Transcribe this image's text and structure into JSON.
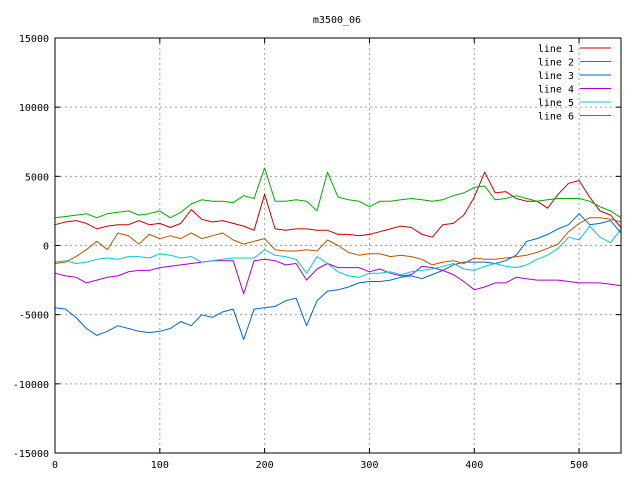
{
  "chart_data": {
    "type": "line",
    "title": "m3500_06",
    "xlabel": "",
    "ylabel": "",
    "xlim": [
      0,
      540
    ],
    "ylim": [
      -15000,
      15000
    ],
    "xticks": [
      0,
      100,
      200,
      300,
      400,
      500
    ],
    "yticks": [
      -15000,
      -10000,
      -5000,
      0,
      5000,
      10000,
      15000
    ],
    "xtick_labels": [
      "0",
      "100",
      "200",
      "300",
      "400",
      "500"
    ],
    "ytick_labels": [
      "-15000",
      "-10000",
      "-5000",
      "0",
      "5000",
      "10000",
      "15000"
    ],
    "grid": true,
    "legend_position": "top-right",
    "x": [
      0,
      10,
      20,
      30,
      40,
      50,
      60,
      70,
      80,
      90,
      100,
      110,
      120,
      130,
      140,
      150,
      160,
      170,
      180,
      190,
      200,
      210,
      220,
      230,
      240,
      250,
      260,
      270,
      280,
      290,
      300,
      310,
      320,
      330,
      340,
      350,
      360,
      370,
      380,
      390,
      400,
      410,
      420,
      430,
      440,
      450,
      460,
      470,
      480,
      490,
      500,
      510,
      520,
      530,
      540
    ],
    "series": [
      {
        "name": "line 1",
        "color": "#cc0000",
        "values": [
          1500,
          1700,
          1800,
          1600,
          1200,
          1400,
          1500,
          1500,
          1800,
          1500,
          1600,
          1300,
          1600,
          2600,
          1900,
          1700,
          1800,
          1600,
          1400,
          1100,
          3700,
          1200,
          1100,
          1200,
          1200,
          1100,
          1100,
          800,
          800,
          700,
          800,
          1000,
          1200,
          1400,
          1300,
          800,
          600,
          1500,
          1600,
          2200,
          3500,
          5300,
          3800,
          3900,
          3400,
          3200,
          3200,
          2700,
          3700,
          4500,
          4700,
          3500,
          2500,
          2200,
          1300
        ]
      },
      {
        "name": "line 2",
        "color": "#00aa00",
        "values": [
          2000,
          2100,
          2200,
          2300,
          2000,
          2300,
          2400,
          2500,
          2200,
          2300,
          2500,
          2000,
          2400,
          3000,
          3300,
          3200,
          3200,
          3100,
          3600,
          3400,
          5600,
          3200,
          3200,
          3300,
          3200,
          2500,
          5300,
          3500,
          3300,
          3200,
          2800,
          3200,
          3200,
          3300,
          3400,
          3300,
          3200,
          3300,
          3600,
          3800,
          4200,
          4300,
          3300,
          3400,
          3600,
          3400,
          3200,
          3300,
          3400,
          3400,
          3400,
          3200,
          2800,
          2500,
          2000
        ]
      },
      {
        "name": "line 3",
        "color": "#0066cc",
        "values": [
          -4500,
          -4600,
          -5200,
          -6000,
          -6500,
          -6200,
          -5800,
          -6000,
          -6200,
          -6300,
          -6200,
          -6000,
          -5500,
          -5800,
          -5000,
          -5200,
          -4800,
          -4600,
          -6800,
          -4600,
          -4500,
          -4400,
          -4000,
          -3800,
          -5800,
          -4000,
          -3300,
          -3200,
          -3000,
          -2700,
          -2600,
          -2600,
          -2500,
          -2300,
          -2200,
          -2400,
          -2100,
          -1800,
          -1400,
          -1200,
          -1200,
          -1200,
          -1300,
          -1100,
          -700,
          300,
          500,
          800,
          1200,
          1500,
          2300,
          1500,
          1600,
          1800,
          900
        ]
      },
      {
        "name": "line 4",
        "color": "#aa00cc",
        "values": [
          -2000,
          -2200,
          -2300,
          -2700,
          -2500,
          -2300,
          -2200,
          -1900,
          -1800,
          -1800,
          -1600,
          -1500,
          -1400,
          -1300,
          -1200,
          -1100,
          -1100,
          -1100,
          -3500,
          -1100,
          -1000,
          -1100,
          -1400,
          -1300,
          -2500,
          -1700,
          -1300,
          -1600,
          -1600,
          -1600,
          -1900,
          -1700,
          -2000,
          -2200,
          -2100,
          -1500,
          -1600,
          -1800,
          -2100,
          -2600,
          -3200,
          -3000,
          -2700,
          -2700,
          -2300,
          -2400,
          -2500,
          -2500,
          -2500,
          -2600,
          -2700,
          -2700,
          -2700,
          -2800,
          -2900
        ]
      },
      {
        "name": "line 5",
        "color": "#00cccc",
        "values": [
          -1200,
          -1100,
          -1300,
          -1200,
          -1000,
          -900,
          -1000,
          -800,
          -800,
          -900,
          -600,
          -700,
          -900,
          -800,
          -1200,
          -1100,
          -1000,
          -900,
          -900,
          -900,
          -300,
          -700,
          -800,
          -1000,
          -2000,
          -800,
          -1300,
          -1900,
          -2200,
          -2300,
          -2000,
          -2000,
          -1900,
          -2100,
          -1900,
          -1800,
          -1700,
          -1500,
          -1300,
          -1700,
          -1800,
          -1500,
          -1300,
          -1500,
          -1600,
          -1400,
          -1000,
          -700,
          -200,
          600,
          400,
          1400,
          600,
          200,
          1200
        ]
      },
      {
        "name": "line 6",
        "color": "#bb5500",
        "values": [
          -1300,
          -1200,
          -800,
          -300,
          300,
          -300,
          900,
          700,
          100,
          800,
          500,
          700,
          500,
          900,
          500,
          700,
          900,
          400,
          100,
          300,
          500,
          -300,
          -400,
          -400,
          -300,
          -400,
          400,
          0,
          -500,
          -700,
          -600,
          -600,
          -800,
          -700,
          -800,
          -1000,
          -1400,
          -1200,
          -1100,
          -1300,
          -900,
          -1000,
          -1000,
          -900,
          -800,
          -700,
          -500,
          -200,
          100,
          1000,
          1600,
          2000,
          2000,
          1900,
          1700
        ]
      }
    ]
  }
}
